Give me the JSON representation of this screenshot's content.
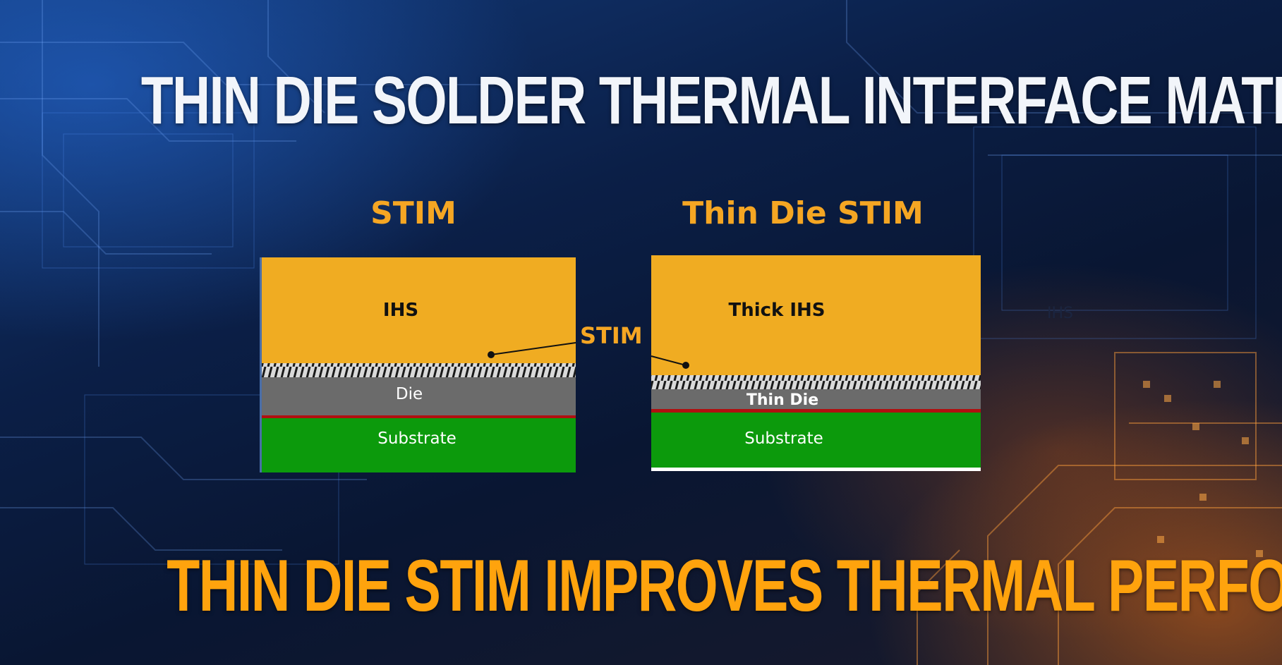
{
  "title": "THIN DIE SOLDER THERMAL INTERFACE MATERIAL",
  "subtitle": "THIN DIE STIM IMPROVES THERMAL PERFORMANCE",
  "diagrams": {
    "stim": {
      "heading": "STIM",
      "ihs_label": "IHS",
      "die_label": "Die",
      "substrate_label": "Substrate"
    },
    "thin_die_stim": {
      "heading": "Thin Die STIM",
      "ihs_label": "Thick IHS",
      "die_label": "Thin Die",
      "substrate_label": "Substrate"
    }
  },
  "callout": {
    "label": "STIM"
  },
  "stray_label": "IHS",
  "colors": {
    "ihs": "#f0ac22",
    "die": "#6b6b6b",
    "substrate": "#0c9a0c",
    "bond_line": "#b01010",
    "heading": "#f5a623",
    "subtitle": "#ffa30d",
    "title": "#f2f5fa"
  }
}
